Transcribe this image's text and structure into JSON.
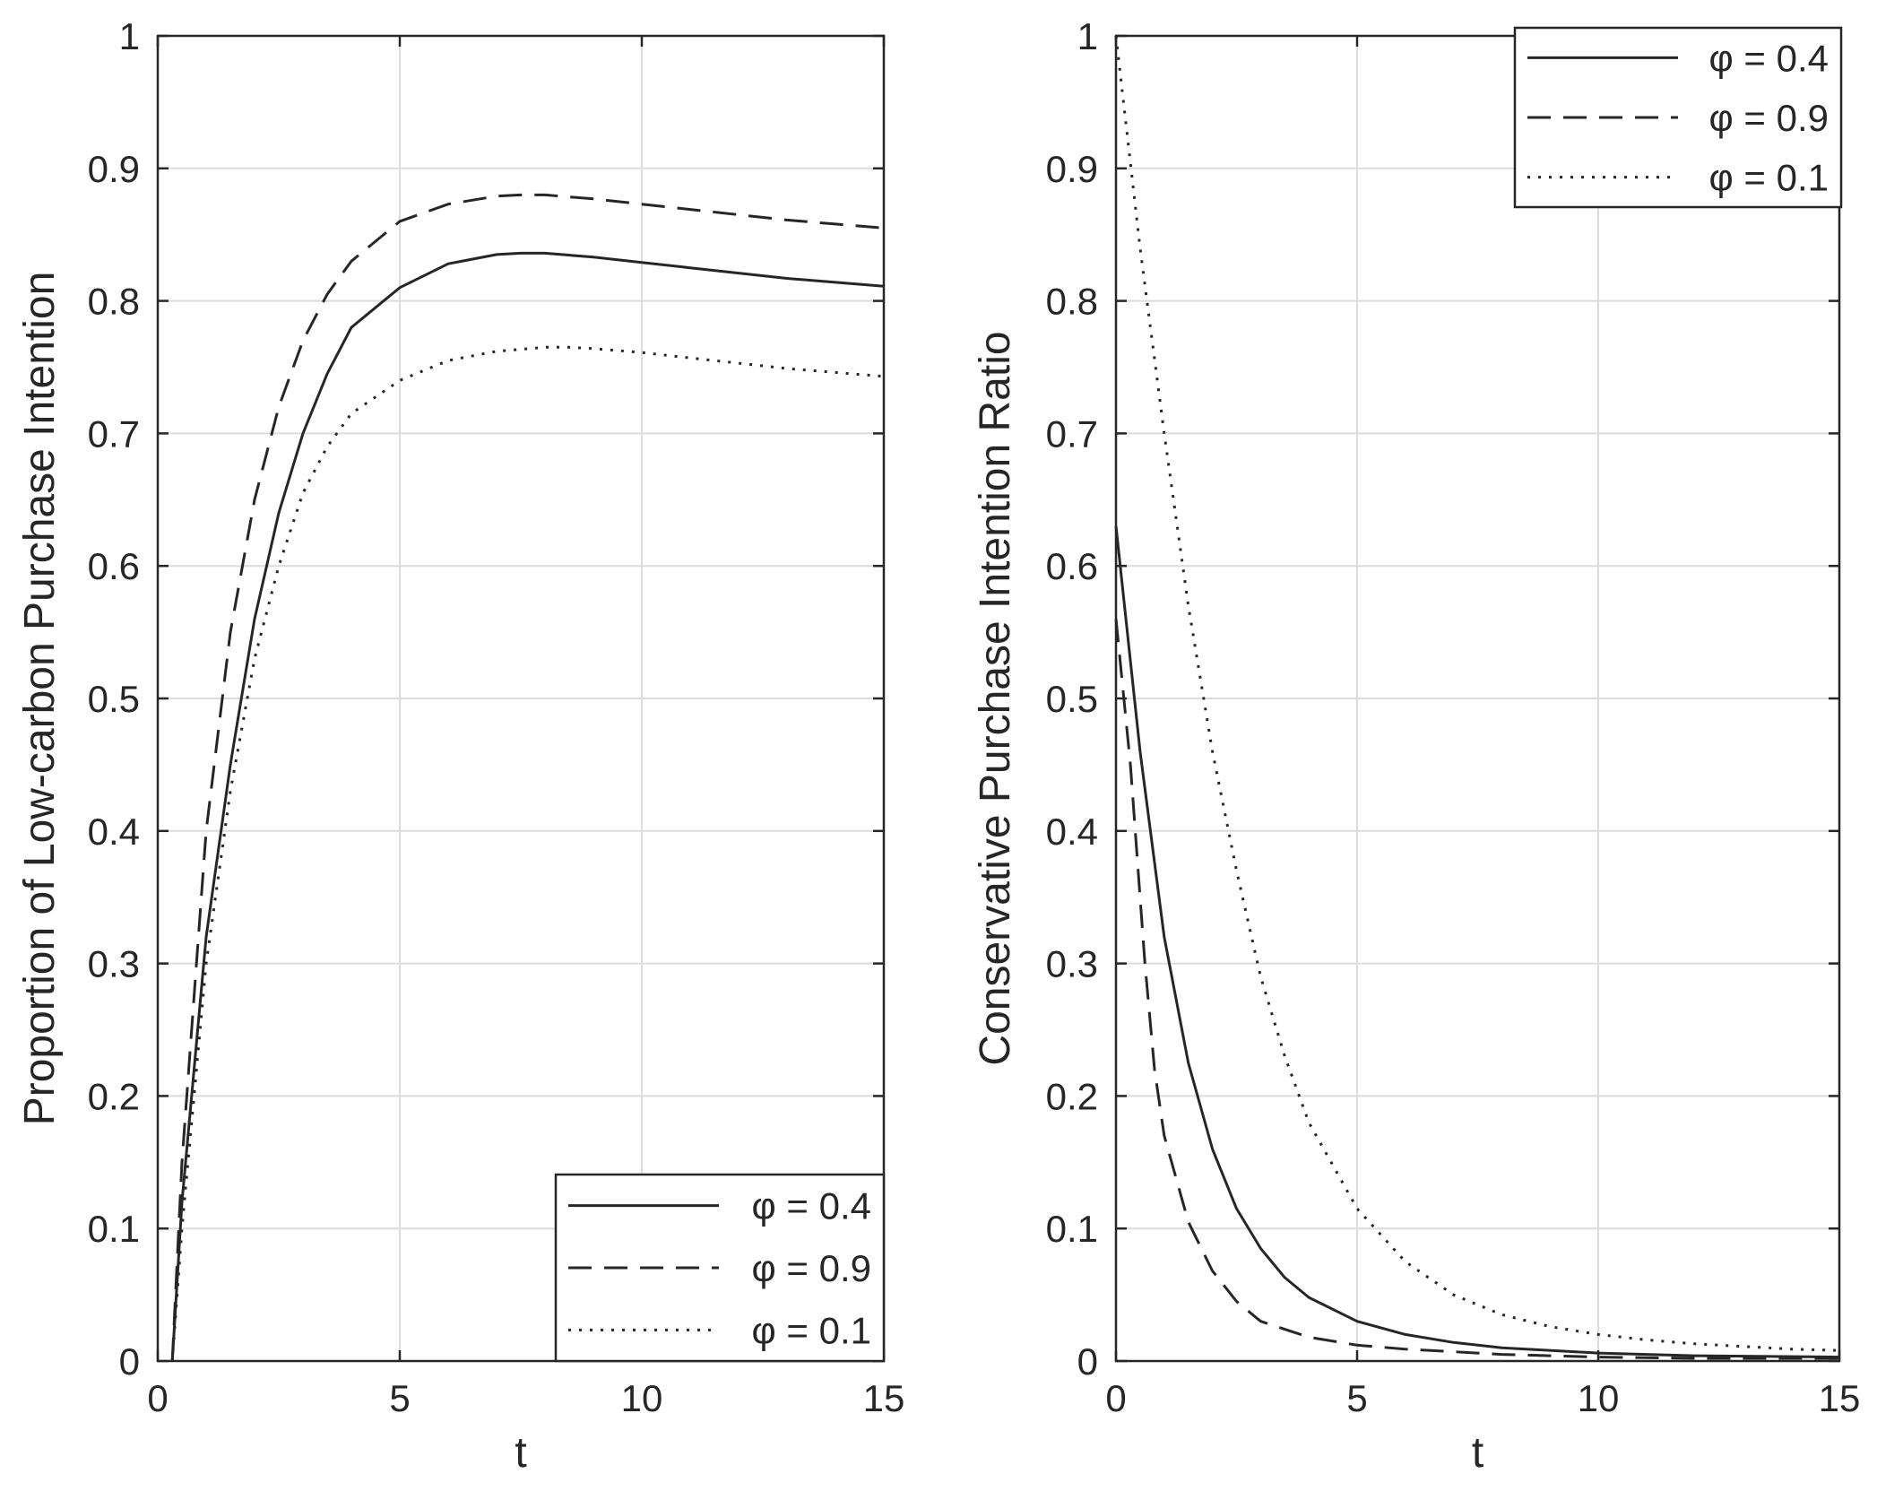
{
  "chart_data": [
    {
      "type": "line",
      "title": "",
      "xlabel": "t",
      "ylabel": "Proportion of Low-carbon Purchase Intention",
      "xlim": [
        0,
        15
      ],
      "ylim": [
        0,
        1
      ],
      "xticks": [
        "0",
        "5",
        "10",
        "15"
      ],
      "yticks": [
        "0",
        "0.1",
        "0.2",
        "0.3",
        "0.4",
        "0.5",
        "0.6",
        "0.7",
        "0.8",
        "0.9",
        "1"
      ],
      "grid": true,
      "legend_position": "bottom-right",
      "series": [
        {
          "name": "φ = 0.4",
          "style": "solid",
          "x": [
            0.3,
            0.5,
            1.0,
            1.5,
            2.0,
            2.5,
            3.0,
            3.5,
            4.0,
            5.0,
            6.0,
            7.0,
            7.5,
            8.0,
            9.0,
            10.0,
            11.0,
            12.0,
            13.0,
            14.0,
            15.0
          ],
          "y": [
            0,
            0.12,
            0.32,
            0.45,
            0.56,
            0.64,
            0.7,
            0.745,
            0.78,
            0.81,
            0.828,
            0.835,
            0.836,
            0.836,
            0.833,
            0.829,
            0.825,
            0.821,
            0.817,
            0.814,
            0.811
          ]
        },
        {
          "name": "φ = 0.9",
          "style": "dashed",
          "x": [
            0.3,
            0.5,
            1.0,
            1.5,
            2.0,
            2.5,
            3.0,
            3.5,
            4.0,
            5.0,
            6.0,
            7.0,
            7.5,
            8.0,
            9.0,
            10.0,
            11.0,
            12.0,
            13.0,
            14.0,
            15.0
          ],
          "y": [
            0,
            0.15,
            0.4,
            0.55,
            0.65,
            0.72,
            0.77,
            0.805,
            0.83,
            0.86,
            0.873,
            0.879,
            0.88,
            0.88,
            0.877,
            0.873,
            0.869,
            0.865,
            0.861,
            0.858,
            0.855
          ]
        },
        {
          "name": "φ = 0.1",
          "style": "dotted",
          "x": [
            0.3,
            0.5,
            1.0,
            1.5,
            2.0,
            2.5,
            3.0,
            3.5,
            4.0,
            5.0,
            6.0,
            7.0,
            8.0,
            8.5,
            9.0,
            10.0,
            11.0,
            12.0,
            13.0,
            14.0,
            15.0
          ],
          "y": [
            0,
            0.1,
            0.3,
            0.43,
            0.53,
            0.6,
            0.655,
            0.69,
            0.715,
            0.74,
            0.755,
            0.762,
            0.765,
            0.765,
            0.764,
            0.761,
            0.757,
            0.753,
            0.749,
            0.746,
            0.743
          ]
        }
      ]
    },
    {
      "type": "line",
      "title": "",
      "xlabel": "t",
      "ylabel": "Conservative Purchase Intention Ratio",
      "xlim": [
        0,
        15
      ],
      "ylim": [
        0,
        1
      ],
      "xticks": [
        "0",
        "5",
        "10",
        "15"
      ],
      "yticks": [
        "0",
        "0.1",
        "0.2",
        "0.3",
        "0.4",
        "0.5",
        "0.6",
        "0.7",
        "0.8",
        "0.9",
        "1"
      ],
      "grid": true,
      "legend_position": "top-right",
      "series": [
        {
          "name": "φ = 0.4",
          "style": "solid",
          "x": [
            0,
            0.5,
            1.0,
            1.5,
            2.0,
            2.5,
            3.0,
            3.5,
            4.0,
            5.0,
            6.0,
            7.0,
            8.0,
            10.0,
            12.0,
            15.0
          ],
          "y": [
            0.63,
            0.46,
            0.32,
            0.225,
            0.16,
            0.115,
            0.085,
            0.063,
            0.048,
            0.03,
            0.02,
            0.014,
            0.01,
            0.006,
            0.004,
            0.003
          ]
        },
        {
          "name": "φ = 0.9",
          "style": "dashed",
          "x": [
            0,
            0.3,
            0.6,
            0.8,
            1.0,
            1.5,
            2.0,
            2.5,
            3.0,
            4.0,
            5.0,
            6.0,
            8.0,
            10.0,
            12.0,
            15.0
          ],
          "y": [
            0.56,
            0.45,
            0.3,
            0.22,
            0.17,
            0.105,
            0.068,
            0.045,
            0.03,
            0.018,
            0.012,
            0.009,
            0.005,
            0.003,
            0.002,
            0.002
          ]
        },
        {
          "name": "φ = 0.1",
          "style": "dotted",
          "x": [
            0,
            0.5,
            1.0,
            1.5,
            2.0,
            2.5,
            3.0,
            3.5,
            4.0,
            5.0,
            6.0,
            7.0,
            8.0,
            9.0,
            10.0,
            11.0,
            12.0,
            13.0,
            14.0,
            15.0
          ],
          "y": [
            1.0,
            0.84,
            0.7,
            0.57,
            0.46,
            0.37,
            0.29,
            0.23,
            0.18,
            0.115,
            0.075,
            0.05,
            0.035,
            0.026,
            0.02,
            0.016,
            0.013,
            0.011,
            0.009,
            0.008
          ]
        }
      ]
    }
  ]
}
